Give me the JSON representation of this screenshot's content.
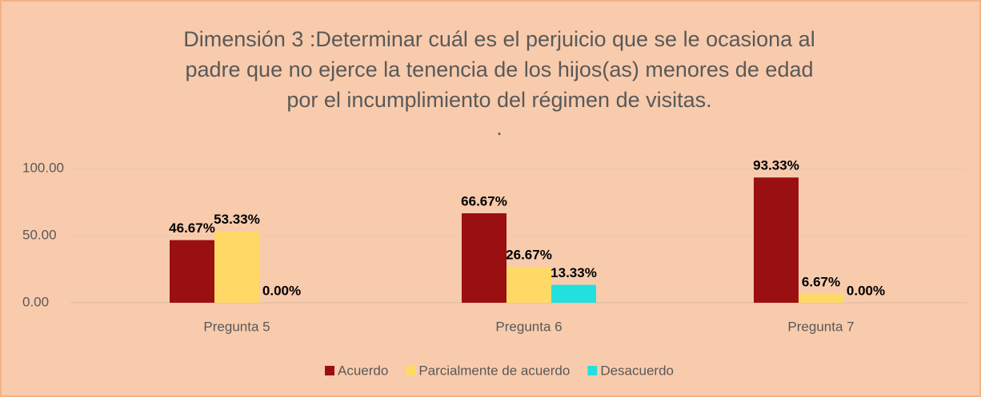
{
  "chart_data": {
    "type": "bar",
    "title": [
      "Dimensión 3 :Determinar cuál es el perjuicio que se le ocasiona al",
      "padre que no ejerce la tenencia de los hijos(as) menores de edad",
      "por el incumplimiento del régimen de visitas."
    ],
    "subtitle": ".",
    "categories": [
      "Pregunta 5",
      "Pregunta 6",
      "Pregunta 7"
    ],
    "series": [
      {
        "name": "Acuerdo",
        "color": "#9a1010",
        "values": [
          46.67,
          66.67,
          93.33
        ],
        "value_labels": [
          "46.67%",
          "66.67%",
          "93.33%"
        ]
      },
      {
        "name": "Parcialmente de acuerdo",
        "color": "#ffd966",
        "values": [
          53.33,
          26.67,
          6.67
        ],
        "value_labels": [
          "53.33%",
          "26.67%",
          "6.67%"
        ]
      },
      {
        "name": "Desacuerdo",
        "color": "#22e0e0",
        "values": [
          0,
          13.33,
          0
        ],
        "value_labels": [
          "0.00%",
          "13.33%",
          "0.00%"
        ]
      }
    ],
    "ylim": [
      0,
      100
    ],
    "yticks": [
      {
        "value": 0,
        "label": "0.00"
      },
      {
        "value": 50,
        "label": "50.00"
      },
      {
        "value": 100,
        "label": "100.00"
      }
    ],
    "grid": true,
    "legend": "bottom"
  }
}
